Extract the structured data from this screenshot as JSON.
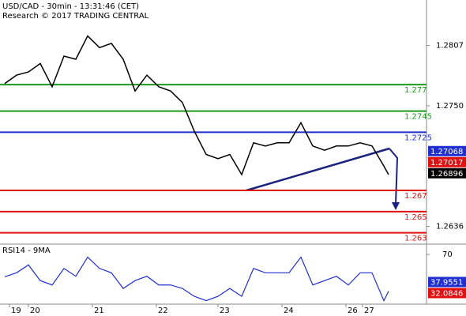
{
  "chart_data": {
    "type": "line",
    "title": "USD/CAD - 30min - 13:31:46 (CET)",
    "subtitle": "Research © 2017 TRADING CENTRAL",
    "x": [
      2,
      7,
      12,
      17,
      22,
      27,
      32,
      37,
      42,
      47,
      52,
      57,
      62,
      67,
      72,
      77,
      82,
      87,
      92,
      97,
      102,
      107,
      112,
      117,
      122,
      127,
      132,
      137,
      142,
      147,
      152,
      157,
      162,
      164
    ],
    "xlim": [
      0,
      180
    ],
    "xticks": [
      {
        "value": 4,
        "label": "19"
      },
      {
        "value": 12,
        "label": "20"
      },
      {
        "value": 39,
        "label": "21"
      },
      {
        "value": 66,
        "label": "22"
      },
      {
        "value": 92,
        "label": "23"
      },
      {
        "value": 119,
        "label": "24"
      },
      {
        "value": 146,
        "label": "26"
      },
      {
        "value": 153,
        "label": "27"
      }
    ],
    "series": [
      {
        "color": "#000000",
        "values": [
          1.2771,
          1.2779,
          1.2782,
          1.279,
          1.2768,
          1.2797,
          1.2794,
          1.2816,
          1.2805,
          1.2809,
          1.2794,
          1.2764,
          1.2779,
          1.2768,
          1.2764,
          1.2753,
          1.2726,
          1.2704,
          1.27,
          1.2704,
          1.2685,
          1.2715,
          1.2712,
          1.2715,
          1.2715,
          1.2734,
          1.2712,
          1.2708,
          1.2712,
          1.2712,
          1.2715,
          1.2712,
          1.2693,
          1.2685
        ]
      }
    ],
    "ylim": [
      1.262,
      1.285
    ],
    "yticks": [
      1.2807,
      {
        "value": 1.275,
        "label": "1.2750"
      },
      1.2636
    ],
    "levels": [
      {
        "value": 1.277,
        "color": "#1a9a1a"
      },
      {
        "value": 1.2745,
        "color": "#1a9a1a"
      },
      {
        "value": 1.2725,
        "color": "#1f2fd0"
      },
      {
        "value": 1.267,
        "color": "#e01010"
      },
      {
        "value": 1.265,
        "color": "#e01010"
      },
      {
        "value": 1.263,
        "color": "#e01010"
      }
    ],
    "last_values": [
      {
        "value": 1.27068,
        "color": "#1f2fd0"
      },
      {
        "value": 1.27017,
        "color": "#e01010"
      },
      {
        "value": 1.26896,
        "color": "#000000"
      }
    ],
    "rsi": {
      "title": "RSI14 - 9MA",
      "color": "#1f2fd0",
      "values": [
        44.5,
        49,
        58,
        40,
        35,
        54,
        45,
        67,
        54,
        49,
        31,
        40,
        45,
        35,
        35,
        31,
        22,
        17,
        22,
        31,
        22,
        54,
        49,
        49,
        49,
        67,
        35,
        40,
        45,
        35,
        49,
        49,
        17,
        28
      ],
      "ylim": [
        13,
        81
      ],
      "yticks": [
        70
      ],
      "last_values": [
        {
          "value": 37.9551,
          "color": "#1f2fd0"
        },
        {
          "value": 32.0846,
          "color": "#e01010"
        }
      ]
    }
  }
}
